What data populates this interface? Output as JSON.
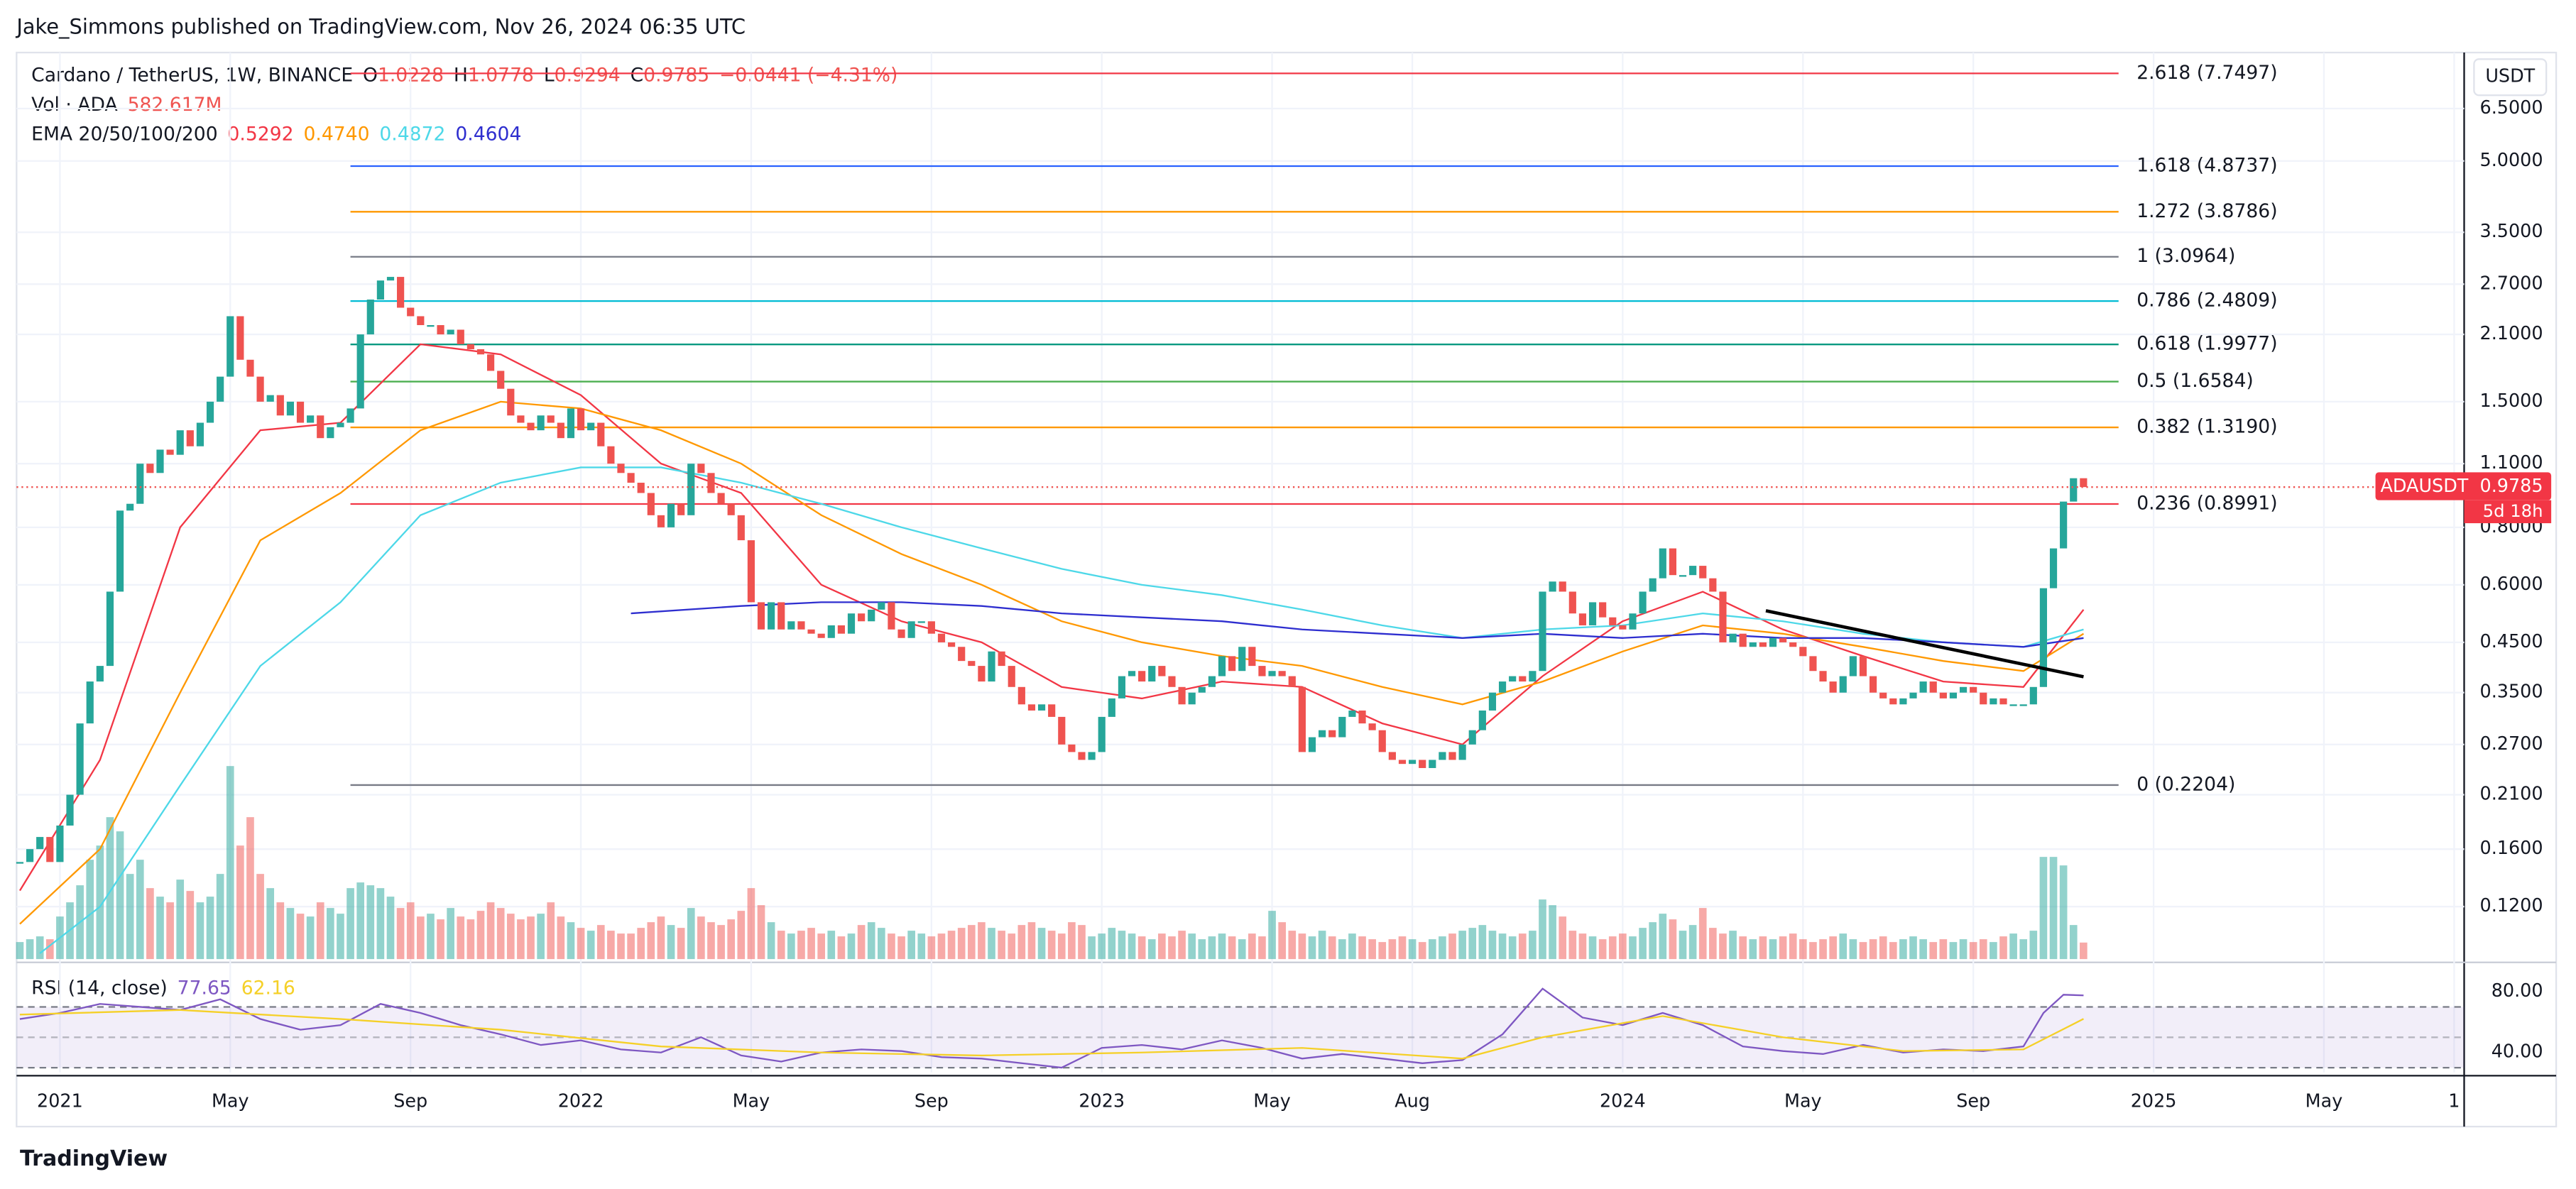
{
  "header": "Jake_Simmons published on TradingView.com, Nov 26, 2024 06:35 UTC",
  "footer": "TradingView",
  "chart_data": {
    "type": "candlestick",
    "title": "Cardano / TetherUS, 1W, BINANCE",
    "ohlc": [
      {
        "label": "O",
        "value": 1.0228
      },
      {
        "label": "H",
        "value": 1.0778
      },
      {
        "label": "L",
        "value": 0.9294
      },
      {
        "label": "C",
        "value": 0.9785
      }
    ],
    "change": "−0.0441 (−4.31%)",
    "volume_title": "Vol · ADA",
    "volume_value": "582.617M",
    "ema_title": "EMA 20/50/100/200",
    "currency": "USDT",
    "symbol": "ADAUSDT",
    "last_price": 0.9785,
    "countdown": "5d 18h",
    "log_scale": true,
    "grid": true,
    "xlim": [
      -0.33,
      244
    ],
    "xticks": [
      {
        "value": 4,
        "label": "2021"
      },
      {
        "value": 21,
        "label": "May"
      },
      {
        "value": 39,
        "label": "Sep"
      },
      {
        "value": 56,
        "label": "2022"
      },
      {
        "value": 73,
        "label": "May"
      },
      {
        "value": 91,
        "label": "Sep"
      },
      {
        "value": 108,
        "label": "2023"
      },
      {
        "value": 125,
        "label": "May"
      },
      {
        "value": 139,
        "label": "Aug"
      },
      {
        "value": 160,
        "label": "2024"
      },
      {
        "value": 178,
        "label": "May"
      },
      {
        "value": 195,
        "label": "Sep"
      },
      {
        "value": 213,
        "label": "2025"
      },
      {
        "value": 230,
        "label": "May"
      },
      {
        "value": 243,
        "label": "1"
      }
    ],
    "ylim": [
      0.0923,
      8.6
    ],
    "yticks": [
      {
        "value": 6.5,
        "label": "6.5000"
      },
      {
        "value": 5,
        "label": "5.0000"
      },
      {
        "value": 3.5,
        "label": "3.5000"
      },
      {
        "value": 2.7,
        "label": "2.7000"
      },
      {
        "value": 2.1,
        "label": "2.1000"
      },
      {
        "value": 1.5,
        "label": "1.5000"
      },
      {
        "value": 1.1,
        "label": "1.1000"
      },
      {
        "value": 0.8,
        "label": "0.8000"
      },
      {
        "value": 0.6,
        "label": "0.6000"
      },
      {
        "value": 0.45,
        "label": "0.4500"
      },
      {
        "value": 0.35,
        "label": "0.3500"
      },
      {
        "value": 0.27,
        "label": "0.2700"
      },
      {
        "value": 0.21,
        "label": "0.2100"
      },
      {
        "value": 0.16,
        "label": "0.1600"
      },
      {
        "value": 0.12,
        "label": "0.1200"
      }
    ],
    "up_color": "#26a69a",
    "down_color": "#ef5350",
    "close": [
      0.15,
      0.16,
      0.17,
      0.15,
      0.18,
      0.21,
      0.3,
      0.37,
      0.4,
      0.58,
      0.87,
      0.9,
      1.1,
      1.05,
      1.18,
      1.15,
      1.3,
      1.2,
      1.35,
      1.5,
      1.7,
      2.3,
      1.85,
      1.7,
      1.5,
      1.55,
      1.4,
      1.5,
      1.35,
      1.4,
      1.25,
      1.32,
      1.35,
      1.45,
      2.1,
      2.5,
      2.75,
      2.8,
      2.4,
      2.3,
      2.2,
      2.2,
      2.1,
      2.15,
      2.0,
      1.95,
      1.9,
      1.75,
      1.6,
      1.4,
      1.35,
      1.3,
      1.4,
      1.35,
      1.25,
      1.45,
      1.3,
      1.35,
      1.2,
      1.1,
      1.05,
      1.0,
      0.95,
      0.85,
      0.8,
      0.9,
      0.85,
      1.1,
      1.05,
      0.95,
      0.9,
      0.85,
      0.75,
      0.55,
      0.48,
      0.55,
      0.48,
      0.5,
      0.48,
      0.47,
      0.46,
      0.49,
      0.47,
      0.52,
      0.5,
      0.53,
      0.55,
      0.48,
      0.46,
      0.5,
      0.5,
      0.47,
      0.45,
      0.44,
      0.41,
      0.4,
      0.37,
      0.43,
      0.4,
      0.36,
      0.33,
      0.32,
      0.33,
      0.31,
      0.27,
      0.26,
      0.25,
      0.26,
      0.31,
      0.34,
      0.38,
      0.39,
      0.37,
      0.4,
      0.38,
      0.36,
      0.33,
      0.35,
      0.36,
      0.38,
      0.42,
      0.39,
      0.44,
      0.4,
      0.38,
      0.39,
      0.38,
      0.36,
      0.26,
      0.28,
      0.29,
      0.28,
      0.31,
      0.32,
      0.3,
      0.29,
      0.26,
      0.25,
      0.245,
      0.25,
      0.24,
      0.25,
      0.26,
      0.25,
      0.27,
      0.29,
      0.32,
      0.35,
      0.37,
      0.38,
      0.37,
      0.39,
      0.58,
      0.61,
      0.58,
      0.52,
      0.49,
      0.55,
      0.51,
      0.49,
      0.48,
      0.52,
      0.58,
      0.62,
      0.72,
      0.63,
      0.63,
      0.66,
      0.62,
      0.58,
      0.45,
      0.47,
      0.44,
      0.45,
      0.44,
      0.46,
      0.45,
      0.44,
      0.42,
      0.39,
      0.37,
      0.35,
      0.38,
      0.42,
      0.38,
      0.35,
      0.34,
      0.33,
      0.34,
      0.35,
      0.37,
      0.35,
      0.34,
      0.35,
      0.36,
      0.35,
      0.33,
      0.34,
      0.33,
      0.33,
      0.33,
      0.36,
      0.59,
      0.72,
      0.91,
      1.0228,
      0.9785
    ],
    "volume_lim": [
      0,
      8100
    ],
    "volume": [
      600,
      700,
      800,
      700,
      1500,
      2000,
      2600,
      3500,
      4000,
      5000,
      4500,
      3000,
      3500,
      2500,
      2200,
      2000,
      2800,
      2400,
      2000,
      2200,
      3000,
      6800,
      4000,
      5000,
      3000,
      2500,
      2000,
      1800,
      1600,
      1500,
      2000,
      1800,
      1600,
      2500,
      2700,
      2600,
      2500,
      2200,
      1800,
      2000,
      1500,
      1600,
      1400,
      1800,
      1500,
      1400,
      1700,
      2000,
      1800,
      1600,
      1400,
      1500,
      1600,
      2000,
      1500,
      1300,
      1100,
      1000,
      1200,
      1000,
      900,
      900,
      1100,
      1300,
      1500,
      1200,
      1100,
      1800,
      1500,
      1300,
      1200,
      1400,
      1700,
      2500,
      1900,
      1300,
      1000,
      900,
      1000,
      1100,
      900,
      1000,
      800,
      900,
      1200,
      1300,
      1100,
      900,
      800,
      1000,
      900,
      800,
      900,
      1000,
      1100,
      1200,
      1300,
      1100,
      1000,
      900,
      1200,
      1300,
      1100,
      1000,
      900,
      1300,
      1200,
      800,
      900,
      1100,
      1000,
      900,
      800,
      700,
      900,
      800,
      1000,
      900,
      700,
      800,
      900,
      800,
      700,
      900,
      800,
      1700,
      1300,
      1000,
      900,
      800,
      1000,
      800,
      700,
      900,
      800,
      700,
      600,
      700,
      800,
      700,
      600,
      700,
      800,
      900,
      1000,
      1100,
      1200,
      1000,
      900,
      800,
      900,
      1000,
      2100,
      1900,
      1500,
      1000,
      900,
      800,
      700,
      800,
      900,
      800,
      1100,
      1300,
      1600,
      1400,
      1000,
      1200,
      1800,
      1100,
      900,
      1000,
      800,
      700,
      800,
      700,
      800,
      900,
      700,
      600,
      700,
      800,
      900,
      700,
      600,
      700,
      800,
      600,
      700,
      800,
      700,
      600,
      700,
      600,
      700,
      600,
      700,
      600,
      800,
      900,
      700,
      1000,
      3600,
      3600,
      3300,
      1200,
      582.617
    ],
    "ema": {
      "series": [
        {
          "name": "20",
          "color": "#f23645",
          "value": 0.5292,
          "x": [
            0,
            8,
            16,
            24,
            32,
            40,
            48,
            56,
            64,
            72,
            80,
            88,
            96,
            104,
            112,
            120,
            128,
            136,
            144,
            152,
            160,
            168,
            176,
            184,
            192,
            200,
            206
          ],
          "values": [
            0.13,
            0.25,
            0.8,
            1.3,
            1.35,
            2.0,
            1.9,
            1.55,
            1.1,
            0.95,
            0.6,
            0.5,
            0.45,
            0.36,
            0.34,
            0.37,
            0.36,
            0.3,
            0.27,
            0.38,
            0.5,
            0.58,
            0.48,
            0.42,
            0.37,
            0.36,
            0.53
          ]
        },
        {
          "name": "50",
          "color": "#ff9800",
          "value": {
            "value": 0.474,
            "label": "0.4740"
          },
          "x": [
            0,
            8,
            16,
            24,
            32,
            40,
            48,
            56,
            64,
            72,
            80,
            88,
            96,
            104,
            112,
            120,
            128,
            136,
            144,
            152,
            160,
            168,
            176,
            184,
            192,
            200,
            206
          ],
          "values": [
            0.11,
            0.16,
            0.35,
            0.75,
            0.95,
            1.3,
            1.5,
            1.45,
            1.3,
            1.1,
            0.85,
            0.7,
            0.6,
            0.5,
            0.45,
            0.42,
            0.4,
            0.36,
            0.33,
            0.37,
            0.43,
            0.49,
            0.47,
            0.44,
            0.41,
            0.39,
            0.47
          ]
        },
        {
          "name": "100",
          "color": "#4dd8e8",
          "value": 0.4872,
          "x": [
            2,
            8,
            16,
            24,
            32,
            40,
            48,
            56,
            64,
            72,
            80,
            88,
            96,
            104,
            112,
            120,
            128,
            136,
            144,
            152,
            160,
            168,
            176,
            184,
            192,
            200,
            206
          ],
          "values": [
            0.095,
            0.12,
            0.22,
            0.4,
            0.55,
            0.85,
            1.0,
            1.08,
            1.08,
            1.0,
            0.9,
            0.8,
            0.72,
            0.65,
            0.6,
            0.57,
            0.53,
            0.49,
            0.46,
            0.48,
            0.49,
            0.52,
            0.5,
            0.47,
            0.45,
            0.44,
            0.48
          ]
        },
        {
          "name": "200",
          "color": "#2e2ecf",
          "value": 0.4604,
          "x": [
            61,
            72,
            80,
            88,
            96,
            104,
            112,
            120,
            128,
            136,
            144,
            152,
            160,
            168,
            176,
            184,
            192,
            200,
            206
          ],
          "values": [
            0.52,
            0.54,
            0.55,
            0.55,
            0.54,
            0.52,
            0.51,
            0.5,
            0.48,
            0.47,
            0.46,
            0.47,
            0.46,
            0.47,
            0.46,
            0.46,
            0.45,
            0.44,
            0.46
          ]
        }
      ]
    },
    "trendline": {
      "color": "#000000",
      "x": [
        174.3,
        206
      ],
      "values": [
        0.527,
        0.379
      ]
    },
    "fib_x": [
      33,
      209.5
    ],
    "fib": [
      {
        "price": 7.7497,
        "label": "2.618 (7.7497)",
        "color": "#f23645"
      },
      {
        "price": 4.8737,
        "label": "1.618 (4.8737)",
        "color": "#2962ff"
      },
      {
        "price": 3.8786,
        "label": "1.272 (3.8786)",
        "color": "#ff9800"
      },
      {
        "price": 3.0964,
        "label": "1 (3.0964)",
        "color": "#787b86"
      },
      {
        "price": 2.4809,
        "label": "0.786 (2.4809)",
        "color": "#00bcd4"
      },
      {
        "price": 1.9977,
        "label": "0.618 (1.9977)",
        "color": "#089981"
      },
      {
        "price": 1.6584,
        "label": "0.5 (1.6584)",
        "color": "#4caf50"
      },
      {
        "price": 1.319,
        "label": "0.382 (1.3190)",
        "color": "#ff9800"
      },
      {
        "price": 0.8991,
        "label": "0.236 (0.8991)",
        "color": "#f23645"
      },
      {
        "price": 0.2204,
        "label": "0 (0.2204)",
        "color": "#787b86"
      }
    ],
    "rsi": {
      "title": "RSI (14, close)",
      "ylim": [
        28,
        95
      ],
      "yticks": [
        {
          "value": 80,
          "label": "80.00"
        },
        {
          "value": 40,
          "label": "40.00"
        }
      ],
      "levels": [
        70,
        50,
        30
      ],
      "series": [
        {
          "color": "#7e57c2",
          "value": 77.65,
          "x": [
            0,
            4,
            8,
            12,
            16,
            20,
            24,
            28,
            32,
            36,
            40,
            44,
            48,
            52,
            56,
            60,
            64,
            68,
            72,
            76,
            80,
            84,
            88,
            92,
            96,
            100,
            104,
            108,
            112,
            116,
            120,
            124,
            128,
            132,
            136,
            140,
            144,
            148,
            152,
            156,
            160,
            164,
            168,
            172,
            176,
            180,
            184,
            188,
            192,
            196,
            200,
            202,
            204,
            206
          ],
          "values": [
            62,
            66,
            72,
            70,
            68,
            75,
            62,
            55,
            58,
            72,
            66,
            58,
            52,
            45,
            48,
            42,
            40,
            50,
            38,
            34,
            40,
            42,
            41,
            37,
            36,
            33,
            30,
            43,
            45,
            42,
            48,
            43,
            36,
            39,
            36,
            33,
            35,
            52,
            82,
            63,
            58,
            66,
            58,
            44,
            41,
            39,
            45,
            40,
            42,
            41,
            44,
            66,
            78,
            77.65
          ]
        },
        {
          "color": "#f5d028",
          "value": 62.16,
          "x": [
            0,
            16,
            32,
            48,
            64,
            80,
            96,
            112,
            128,
            144,
            152,
            164,
            176,
            188,
            200,
            206
          ],
          "values": [
            65,
            68,
            62,
            55,
            44,
            40,
            38,
            40,
            43,
            36,
            50,
            64,
            50,
            41,
            42,
            62.16
          ]
        }
      ]
    }
  }
}
